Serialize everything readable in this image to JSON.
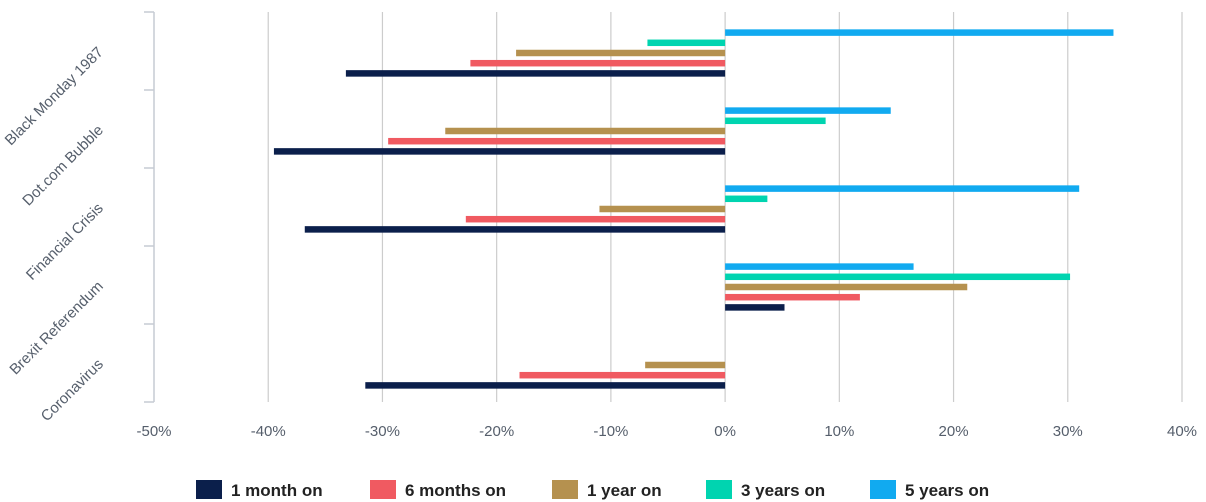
{
  "chart_data": {
    "type": "bar",
    "orientation": "horizontal",
    "categories": [
      "Black Monday 1987",
      "Dot.com Bubble",
      "Financial Crisis",
      "Brexit Referendum",
      "Coronavirus"
    ],
    "series": [
      {
        "name": "1 month on",
        "color": "#0b1f4b",
        "values": [
          -33.2,
          -39.5,
          -36.8,
          5.2,
          -31.5
        ]
      },
      {
        "name": "6 months on",
        "color": "#f05a61",
        "values": [
          -22.3,
          -29.5,
          -22.7,
          11.8,
          -18.0
        ]
      },
      {
        "name": "1 year on",
        "color": "#b5914f",
        "values": [
          -18.3,
          -24.5,
          -11.0,
          21.2,
          -7.0
        ]
      },
      {
        "name": "3 years on",
        "color": "#00d4b0",
        "values": [
          -6.8,
          8.8,
          3.7,
          30.2,
          null
        ]
      },
      {
        "name": "5 years on",
        "color": "#11aaf0",
        "values": [
          34.0,
          14.5,
          31.0,
          16.5,
          null
        ]
      }
    ],
    "xlim": [
      -50,
      40
    ],
    "x_ticks": [
      -50,
      -40,
      -30,
      -20,
      -10,
      0,
      10,
      20,
      30,
      40
    ],
    "x_tick_labels": [
      "-50%",
      "-40%",
      "-30%",
      "-20%",
      "-10%",
      "0%",
      "10%",
      "20%",
      "30%",
      "40%"
    ],
    "grid": "vertical",
    "legend_position": "bottom"
  }
}
